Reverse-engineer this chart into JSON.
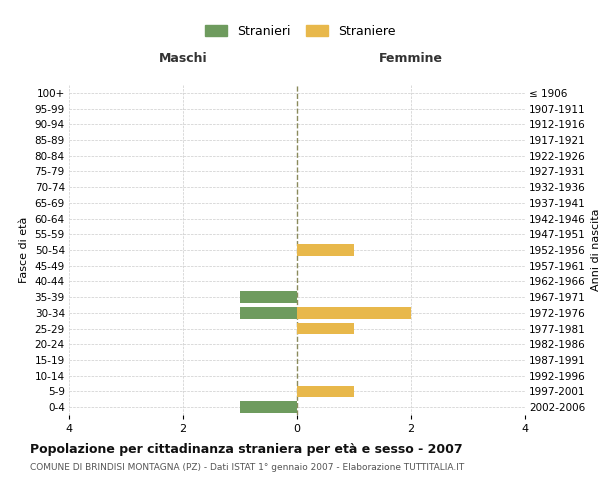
{
  "age_groups": [
    "100+",
    "95-99",
    "90-94",
    "85-89",
    "80-84",
    "75-79",
    "70-74",
    "65-69",
    "60-64",
    "55-59",
    "50-54",
    "45-49",
    "40-44",
    "35-39",
    "30-34",
    "25-29",
    "20-24",
    "15-19",
    "10-14",
    "5-9",
    "0-4"
  ],
  "birth_years": [
    "≤ 1906",
    "1907-1911",
    "1912-1916",
    "1917-1921",
    "1922-1926",
    "1927-1931",
    "1932-1936",
    "1937-1941",
    "1942-1946",
    "1947-1951",
    "1952-1956",
    "1957-1961",
    "1962-1966",
    "1967-1971",
    "1972-1976",
    "1977-1981",
    "1982-1986",
    "1987-1991",
    "1992-1996",
    "1997-2001",
    "2002-2006"
  ],
  "males": [
    0,
    0,
    0,
    0,
    0,
    0,
    0,
    0,
    0,
    0,
    0,
    0,
    0,
    1,
    1,
    0,
    0,
    0,
    0,
    0,
    1
  ],
  "females": [
    0,
    0,
    0,
    0,
    0,
    0,
    0,
    0,
    0,
    0,
    1,
    0,
    0,
    0,
    2,
    1,
    0,
    0,
    0,
    1,
    0
  ],
  "male_color": "#6e9b5e",
  "female_color": "#e8b84b",
  "male_label": "Stranieri",
  "female_label": "Straniere",
  "header_left": "Maschi",
  "header_right": "Femmine",
  "ylabel_left": "Fasce di età",
  "ylabel_right": "Anni di nascita",
  "title": "Popolazione per cittadinanza straniera per età e sesso - 2007",
  "subtitle": "COMUNE DI BRINDISI MONTAGNA (PZ) - Dati ISTAT 1° gennaio 2007 - Elaborazione TUTTITALIA.IT",
  "xlim": 4,
  "background_color": "#ffffff",
  "grid_color": "#cccccc",
  "center_line_color": "#8a8a5c"
}
